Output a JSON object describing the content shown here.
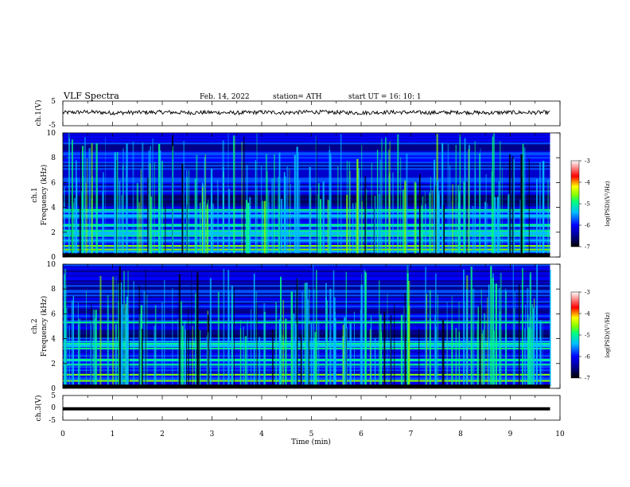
{
  "header": {
    "title": "VLF  Spectra",
    "date": "Feb. 14, 2022",
    "station": "station= ATH",
    "start_ut": "start  UT  =   16: 10: 1"
  },
  "colors": {
    "background": "#ffffff",
    "frame": "#000000",
    "waveform": "#000000",
    "colormap": [
      "#000000",
      "#00008b",
      "#0000ff",
      "#00bfff",
      "#00ff7f",
      "#7fff00",
      "#ffff00",
      "#ff0000",
      "#ffffff"
    ]
  },
  "chart_data": [
    {
      "type": "line",
      "panel": "ch1-waveform",
      "ylabel": "ch.1(V)",
      "ylim": [
        -5,
        5
      ],
      "ytick_labels": [
        "5",
        "-5"
      ],
      "xlim": [
        0,
        10
      ],
      "data_end_min": 9.8,
      "x": [
        0.0,
        0.5,
        1.0,
        1.5,
        2.0,
        2.5,
        3.0,
        3.5,
        4.0,
        4.5,
        5.0,
        5.5,
        6.0,
        6.5,
        7.0,
        7.5,
        8.0,
        8.5,
        9.0,
        9.5,
        9.8
      ],
      "values": [
        0.3,
        0.6,
        0.2,
        0.4,
        0.5,
        0.3,
        0.4,
        0.2,
        0.5,
        0.3,
        0.6,
        0.4,
        0.2,
        0.5,
        0.4,
        0.3,
        0.5,
        0.2,
        0.4,
        0.3,
        0.4
      ]
    },
    {
      "type": "heatmap",
      "panel": "ch1-spectrogram",
      "ylabel_channel": "ch.1",
      "ylabel": "Frequency  (kHz)",
      "ylim": [
        0,
        10
      ],
      "ytick_labels": [
        "0",
        "2",
        "4",
        "6",
        "8",
        "10"
      ],
      "xlim": [
        0,
        10
      ],
      "data_end_min": 9.8,
      "colorbar": {
        "label": "log(PSD)(V²/Hz)",
        "range": [
          -7,
          -3
        ],
        "tick_labels": [
          "-3",
          "-4",
          "-5",
          "-6",
          "-7"
        ]
      },
      "bright_bands_khz": [
        0.6,
        0.9,
        1.7,
        2.1,
        2.6,
        3.8
      ],
      "quiet_band_khz": [
        4.0,
        5.0
      ]
    },
    {
      "type": "heatmap",
      "panel": "ch2-spectrogram",
      "ylabel_channel": "ch.2",
      "ylabel": "Frequency  (kHz)",
      "ylim": [
        0,
        10
      ],
      "ytick_labels": [
        "0",
        "2",
        "4",
        "6",
        "8",
        "10"
      ],
      "xlim": [
        0,
        10
      ],
      "data_end_min": 9.8,
      "colorbar": {
        "label": "log(PSD)(V²/Hz)",
        "range": [
          -7,
          -3
        ],
        "tick_labels": [
          "-3",
          "-4",
          "-5",
          "-6",
          "-7"
        ]
      },
      "bright_bands_khz": [
        0.6,
        1.1,
        1.9,
        2.3,
        3.2,
        3.6,
        5.3
      ],
      "quiet_band_khz": [
        4.0,
        4.8
      ]
    },
    {
      "type": "line",
      "panel": "ch3-waveform",
      "ylabel": "ch.3(V)",
      "ylim": [
        -5,
        5
      ],
      "ytick_labels": [
        "5",
        "0",
        "-5"
      ],
      "xlim": [
        0,
        10
      ],
      "data_end_min": 9.8,
      "x": [
        0.0,
        9.8
      ],
      "values": [
        -0.4,
        -0.4
      ],
      "xlabel": "Time  (min)",
      "xtick_labels": [
        "0",
        "1",
        "2",
        "3",
        "4",
        "5",
        "6",
        "7",
        "8",
        "9",
        "10"
      ]
    }
  ]
}
